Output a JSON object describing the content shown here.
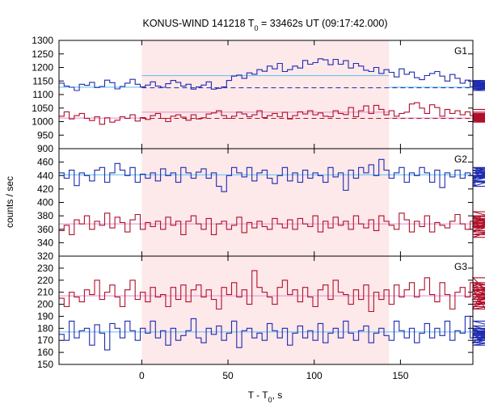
{
  "chart_data": {
    "type": "line",
    "title": {
      "main": "KONUS-WIND 141218 T",
      "sub": "0",
      "rest": " = 33462s UT (09:17:42.000)"
    },
    "xlabel": {
      "main": "T - T",
      "sub": "0",
      "rest": ", s"
    },
    "ylabel": "counts / sec",
    "xlim": [
      -48,
      192
    ],
    "x_ticks": [
      0,
      50,
      100,
      150
    ],
    "bin_width": 2.944,
    "highlight_interval": [
      0,
      143.4
    ],
    "colors": {
      "highlight": "#fde8ea",
      "blue_series": "#1f2bb0",
      "red_series": "#b0102a",
      "blue_fit": "#6ec6f0",
      "red_fit": "#e8a0d8",
      "background_level": "#c0102a",
      "axis": "#000000"
    },
    "panels": [
      {
        "label": "G1",
        "ylim": [
          900,
          1300
        ],
        "y_ticks": [
          900,
          950,
          1000,
          1050,
          1100,
          1150,
          1200,
          1250,
          1300
        ],
        "series": [
          {
            "color_key": "blue_series",
            "values": [
              1142,
              1131,
              1127,
              1115,
              1138,
              1134,
              1145,
              1126,
              1130,
              1153,
              1144,
              1121,
              1130,
              1142,
              1156,
              1138,
              1128,
              1135,
              1147,
              1131,
              1127,
              1140,
              1152,
              1145,
              1131,
              1138,
              1120,
              1128,
              1135,
              1147,
              1120,
              1123,
              1128,
              1152,
              1168,
              1172,
              1160,
              1180,
              1175,
              1192,
              1186,
              1205,
              1195,
              1215,
              1185,
              1192,
              1205,
              1198,
              1226,
              1212,
              1218,
              1232,
              1228,
              1210,
              1230,
              1212,
              1225,
              1198,
              1215,
              1205,
              1190,
              1185,
              1200,
              1178,
              1192,
              1182,
              1165,
              1195,
              1175,
              1183,
              1162,
              1155,
              1170,
              1178,
              1185,
              1168,
              1150,
              1174,
              1160,
              1142,
              1153,
              1128,
              1138,
              1148,
              1120,
              1128,
              1152,
              1142,
              1138,
              1126,
              1131,
              1115,
              1135,
              1140,
              1128,
              1132,
              1145,
              1120,
              1128,
              1140,
              1133,
              1130,
              1126,
              1122,
              1140
            ]
          },
          {
            "color_key": "red_series",
            "values": [
              1020,
              1036,
              1010,
              1022,
              1030,
              1012,
              1004,
              1018,
              990,
              1014,
              998,
              1005,
              1018,
              1012,
              1025,
              1002,
              1015,
              1008,
              1022,
              1030,
              1012,
              1000,
              1020,
              1025,
              1016,
              1005,
              1025,
              1010,
              1014,
              1028,
              1032,
              1040,
              1022,
              1012,
              1020,
              1035,
              1028,
              1018,
              1025,
              1040,
              1015,
              1022,
              1030,
              1018,
              1034,
              1010,
              1022,
              1036,
              1028,
              1040,
              1025,
              1032,
              1020,
              1018,
              1040,
              1030,
              1026,
              1052,
              1018,
              1040,
              1058,
              1030,
              1060,
              1045,
              1025,
              1040,
              1020,
              1030,
              1035,
              1065,
              1070,
              1050,
              1030,
              1062,
              1052,
              1020,
              1045,
              1030,
              1040,
              1025,
              1036,
              1022,
              1030,
              1015,
              1025,
              1008,
              1018,
              1012,
              1022,
              1005,
              1018,
              1010,
              1025,
              1016,
              998,
              1010,
              1020,
              1030,
              1002,
              1015,
              1028,
              1022,
              1010,
              1045,
              1035
            ]
          }
        ],
        "fits": [
          {
            "color_key": "blue_fit",
            "value": 1170,
            "x_start": 0,
            "x_end": 143.4
          },
          {
            "color_key": "blue_fit",
            "value": 1127,
            "x_start": -48,
            "x_end": 0
          },
          {
            "color_key": "blue_fit",
            "value": 1127,
            "x_start": 143.4,
            "x_end": 192
          },
          {
            "color_key": "red_fit",
            "value": 1035,
            "x_start": 0,
            "x_end": 143.4
          },
          {
            "color_key": "red_fit",
            "value": 1013,
            "x_start": -48,
            "x_end": 0
          },
          {
            "color_key": "red_fit",
            "value": 1013,
            "x_start": 143.4,
            "x_end": 192
          }
        ],
        "dashed_levels": [
          {
            "color_key": "blue_series",
            "value": 1125,
            "x_start": 0,
            "x_end": 192
          },
          {
            "color_key": "red_series",
            "value": 1012,
            "x_start": 0,
            "x_end": 192
          }
        ]
      },
      {
        "label": "G2",
        "ylim": [
          320,
          480
        ],
        "y_ticks": [
          320,
          340,
          360,
          380,
          400,
          420,
          440,
          460
        ],
        "series": [
          {
            "color_key": "blue_series",
            "values": [
              444,
              436,
              448,
              425,
              444,
              440,
              432,
              448,
              452,
              430,
              444,
              458,
              448,
              440,
              452,
              430,
              442,
              436,
              444,
              432,
              450,
              440,
              444,
              430,
              452,
              444,
              436,
              445,
              450,
              436,
              444,
              424,
              416,
              440,
              452,
              444,
              438,
              452,
              432,
              444,
              448,
              436,
              428,
              440,
              452,
              432,
              444,
              430,
              448,
              436,
              444,
              440,
              430,
              452,
              438,
              444,
              418,
              448,
              436,
              452,
              444,
              456,
              440,
              464,
              448,
              436,
              444,
              452,
              430,
              444,
              440,
              452,
              444,
              430,
              448,
              422,
              444,
              438,
              448,
              436,
              444,
              440,
              426,
              452,
              444,
              436,
              448,
              432,
              444,
              452,
              440,
              424,
              448,
              438,
              452,
              444,
              436,
              440,
              452,
              444,
              448,
              430,
              444,
              440,
              432
            ]
          },
          {
            "color_key": "red_series",
            "values": [
              358,
              366,
              352,
              374,
              368,
              380,
              360,
              372,
              366,
              384,
              362,
              378,
              370,
              356,
              374,
              382,
              360,
              370,
              364,
              372,
              360,
              378,
              366,
              372,
              352,
              372,
              380,
              368,
              360,
              376,
              352,
              368,
              372,
              360,
              366,
              378,
              355,
              370,
              362,
              372,
              364,
              360,
              376,
              368,
              362,
              374,
              360,
              376,
              368,
              364,
              380,
              356,
              372,
              362,
              378,
              366,
              372,
              360,
              380,
              368,
              362,
              374,
              358,
              380,
              372,
              366,
              360,
              384,
              374,
              356,
              372,
              364,
              380,
              356,
              370,
              366,
              362,
              372,
              382,
              368,
              360,
              372,
              364,
              378,
              370,
              358,
              370,
              366,
              362,
              380,
              348,
              372,
              356,
              386,
              362,
              374,
              364,
              370,
              352,
              376,
              366,
              362,
              380,
              368,
              372
            ]
          }
        ],
        "fits": [
          {
            "color_key": "blue_fit",
            "value": 441,
            "x_start": -48,
            "x_end": 192
          },
          {
            "color_key": "red_fit",
            "value": 368,
            "x_start": -48,
            "x_end": 192
          }
        ],
        "dashed_levels": []
      },
      {
        "label": "G3",
        "ylim": [
          150,
          240
        ],
        "y_ticks": [
          150,
          160,
          170,
          180,
          190,
          200,
          210,
          220,
          230
        ],
        "series": [
          {
            "color_key": "blue_series",
            "values": [
              175,
              170,
              186,
              172,
              178,
              180,
              166,
              183,
              176,
              162,
              184,
              180,
              172,
              186,
              178,
              170,
              180,
              176,
              186,
              172,
              178,
              166,
              180,
              170,
              174,
              178,
              188,
              172,
              168,
              180,
              175,
              182,
              170,
              176,
              186,
              164,
              178,
              180,
              172,
              176,
              170,
              184,
              178,
              172,
              180,
              166,
              176,
              182,
              172,
              178,
              170,
              184,
              168,
              176,
              180,
              172,
              186,
              176,
              170,
              178,
              182,
              168,
              176,
              180,
              174,
              170,
              186,
              178,
              172,
              180,
              168,
              176,
              184,
              172,
              180,
              174,
              186,
              170,
              178,
              176,
              190,
              172,
              180,
              168,
              176,
              178,
              172,
              180,
              168,
              174,
              186,
              176,
              172,
              178,
              170,
              182,
              166,
              176,
              180,
              172,
              170,
              178,
              175,
              172,
              180
            ]
          },
          {
            "color_key": "red_series",
            "values": [
              205,
              198,
              210,
              206,
              202,
              212,
              208,
              220,
              204,
              210,
              216,
              206,
              198,
              212,
              220,
              204,
              210,
              202,
              214,
              206,
              208,
              198,
              214,
              204,
              216,
              202,
              212,
              216,
              206,
              212,
              204,
              196,
              214,
              208,
              218,
              206,
              212,
              200,
              228,
              214,
              210,
              206,
              200,
              214,
              220,
              208,
              212,
              202,
              214,
              206,
              198,
              212,
              216,
              204,
              220,
              210,
              208,
              200,
              212,
              204,
              216,
              194,
              210,
              204,
              212,
              200,
              216,
              206,
              212,
              218,
              206,
              212,
              222,
              208,
              202,
              218,
              208,
              196,
              210,
              214,
              206,
              218,
              208,
              212,
              196,
              222,
              204,
              218,
              206,
              212,
              200,
              208,
              216,
              198,
              212,
              206,
              202,
              214,
              196,
              208,
              200,
              212,
              218,
              204,
              212
            ]
          }
        ],
        "fits": [
          {
            "color_key": "red_fit",
            "value": 207,
            "x_start": -48,
            "x_end": 192
          },
          {
            "color_key": "blue_fit",
            "value": 177,
            "x_start": -48,
            "x_end": 192
          }
        ],
        "dashed_levels": []
      }
    ]
  }
}
